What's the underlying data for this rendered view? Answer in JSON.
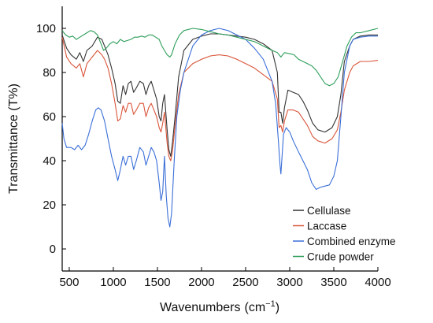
{
  "chart_data": {
    "type": "line",
    "title": "",
    "xlabel": "Wavenumbers",
    "xlabel_unit": "(cm",
    "xlabel_exp": "−1",
    "xlabel_close": ")",
    "ylabel": "Transmittance (T%)",
    "xlim": [
      420,
      4000
    ],
    "ylim": [
      -10,
      110
    ],
    "xticks": [
      500,
      1000,
      1500,
      2000,
      2500,
      3000,
      3500,
      4000
    ],
    "yticks": [
      0,
      20,
      40,
      60,
      80,
      100
    ],
    "legend_position": "bottom-right",
    "grid": false,
    "series": [
      {
        "name": "Cellulase",
        "color": "#333333",
        "points": [
          [
            420,
            97
          ],
          [
            470,
            91
          ],
          [
            520,
            88
          ],
          [
            580,
            86
          ],
          [
            620,
            89
          ],
          [
            660,
            85
          ],
          [
            700,
            90
          ],
          [
            760,
            92
          ],
          [
            820,
            96
          ],
          [
            870,
            95
          ],
          [
            900,
            92
          ],
          [
            940,
            88
          ],
          [
            980,
            82
          ],
          [
            1020,
            75
          ],
          [
            1050,
            67
          ],
          [
            1080,
            66
          ],
          [
            1110,
            74
          ],
          [
            1140,
            70
          ],
          [
            1170,
            75
          ],
          [
            1200,
            76
          ],
          [
            1230,
            71
          ],
          [
            1260,
            73
          ],
          [
            1300,
            76
          ],
          [
            1340,
            75
          ],
          [
            1370,
            70
          ],
          [
            1400,
            74
          ],
          [
            1430,
            76
          ],
          [
            1460,
            72
          ],
          [
            1490,
            68
          ],
          [
            1520,
            60
          ],
          [
            1540,
            58
          ],
          [
            1560,
            66
          ],
          [
            1580,
            70
          ],
          [
            1610,
            54
          ],
          [
            1630,
            45
          ],
          [
            1650,
            42
          ],
          [
            1670,
            48
          ],
          [
            1700,
            60
          ],
          [
            1740,
            78
          ],
          [
            1800,
            90
          ],
          [
            1900,
            95
          ],
          [
            2000,
            96.5
          ],
          [
            2100,
            97.5
          ],
          [
            2200,
            97.5
          ],
          [
            2300,
            97
          ],
          [
            2400,
            96.5
          ],
          [
            2500,
            96
          ],
          [
            2600,
            95
          ],
          [
            2700,
            93
          ],
          [
            2800,
            90
          ],
          [
            2860,
            80
          ],
          [
            2880,
            62
          ],
          [
            2900,
            62
          ],
          [
            2920,
            57
          ],
          [
            2940,
            64
          ],
          [
            2980,
            72
          ],
          [
            3040,
            71
          ],
          [
            3100,
            70
          ],
          [
            3150,
            67
          ],
          [
            3200,
            63
          ],
          [
            3260,
            57
          ],
          [
            3320,
            54
          ],
          [
            3400,
            53
          ],
          [
            3480,
            55
          ],
          [
            3540,
            60
          ],
          [
            3580,
            70
          ],
          [
            3620,
            85
          ],
          [
            3680,
            92
          ],
          [
            3720,
            95
          ],
          [
            3800,
            96.5
          ],
          [
            3900,
            97
          ],
          [
            4000,
            97
          ]
        ]
      },
      {
        "name": "Laccase",
        "color": "#d9553a",
        "points": [
          [
            420,
            96
          ],
          [
            470,
            87
          ],
          [
            520,
            84
          ],
          [
            580,
            82
          ],
          [
            620,
            84
          ],
          [
            660,
            78
          ],
          [
            700,
            84
          ],
          [
            760,
            87
          ],
          [
            820,
            90
          ],
          [
            870,
            88
          ],
          [
            900,
            86
          ],
          [
            940,
            82
          ],
          [
            980,
            75
          ],
          [
            1020,
            66
          ],
          [
            1050,
            58
          ],
          [
            1080,
            59
          ],
          [
            1110,
            65
          ],
          [
            1140,
            62
          ],
          [
            1170,
            66
          ],
          [
            1200,
            66
          ],
          [
            1230,
            61
          ],
          [
            1260,
            63
          ],
          [
            1300,
            66
          ],
          [
            1340,
            66
          ],
          [
            1370,
            60
          ],
          [
            1400,
            64
          ],
          [
            1430,
            66
          ],
          [
            1460,
            63
          ],
          [
            1490,
            60
          ],
          [
            1520,
            55
          ],
          [
            1540,
            53
          ],
          [
            1560,
            57
          ],
          [
            1580,
            62
          ],
          [
            1610,
            48
          ],
          [
            1630,
            42
          ],
          [
            1650,
            40
          ],
          [
            1670,
            44
          ],
          [
            1700,
            56
          ],
          [
            1740,
            70
          ],
          [
            1800,
            80
          ],
          [
            1900,
            84
          ],
          [
            2000,
            86
          ],
          [
            2100,
            87.5
          ],
          [
            2200,
            88
          ],
          [
            2300,
            87.5
          ],
          [
            2400,
            86
          ],
          [
            2500,
            84
          ],
          [
            2600,
            82
          ],
          [
            2700,
            79
          ],
          [
            2800,
            76
          ],
          [
            2860,
            68
          ],
          [
            2880,
            55
          ],
          [
            2900,
            56
          ],
          [
            2920,
            53
          ],
          [
            2940,
            58
          ],
          [
            2980,
            63
          ],
          [
            3040,
            63
          ],
          [
            3100,
            62
          ],
          [
            3150,
            59
          ],
          [
            3200,
            56
          ],
          [
            3260,
            51
          ],
          [
            3320,
            49
          ],
          [
            3400,
            48
          ],
          [
            3480,
            50
          ],
          [
            3540,
            54
          ],
          [
            3580,
            62
          ],
          [
            3620,
            72
          ],
          [
            3680,
            80
          ],
          [
            3720,
            83
          ],
          [
            3800,
            85
          ],
          [
            3900,
            85
          ],
          [
            4000,
            85.5
          ]
        ]
      },
      {
        "name": "Combined enzyme",
        "color": "#3a6fd8",
        "points": [
          [
            420,
            57
          ],
          [
            440,
            50
          ],
          [
            470,
            46
          ],
          [
            520,
            46
          ],
          [
            560,
            45
          ],
          [
            600,
            47
          ],
          [
            640,
            45
          ],
          [
            680,
            47
          ],
          [
            720,
            52
          ],
          [
            760,
            58
          ],
          [
            800,
            63
          ],
          [
            830,
            64
          ],
          [
            860,
            63
          ],
          [
            900,
            58
          ],
          [
            940,
            50
          ],
          [
            980,
            42
          ],
          [
            1020,
            36
          ],
          [
            1050,
            31
          ],
          [
            1080,
            36
          ],
          [
            1110,
            42
          ],
          [
            1140,
            38
          ],
          [
            1170,
            42
          ],
          [
            1200,
            42
          ],
          [
            1230,
            36
          ],
          [
            1260,
            40
          ],
          [
            1300,
            46
          ],
          [
            1340,
            44
          ],
          [
            1370,
            38
          ],
          [
            1400,
            42
          ],
          [
            1430,
            46
          ],
          [
            1460,
            44
          ],
          [
            1490,
            40
          ],
          [
            1520,
            30
          ],
          [
            1540,
            22
          ],
          [
            1560,
            26
          ],
          [
            1580,
            42
          ],
          [
            1600,
            24
          ],
          [
            1620,
            14
          ],
          [
            1640,
            10
          ],
          [
            1660,
            16
          ],
          [
            1690,
            40
          ],
          [
            1720,
            60
          ],
          [
            1760,
            72
          ],
          [
            1800,
            80
          ],
          [
            1900,
            92
          ],
          [
            2000,
            97
          ],
          [
            2100,
            99
          ],
          [
            2200,
            100
          ],
          [
            2300,
            99
          ],
          [
            2400,
            97
          ],
          [
            2500,
            95
          ],
          [
            2600,
            91
          ],
          [
            2700,
            86
          ],
          [
            2800,
            76
          ],
          [
            2840,
            66
          ],
          [
            2870,
            50
          ],
          [
            2890,
            38
          ],
          [
            2900,
            34
          ],
          [
            2910,
            40
          ],
          [
            2930,
            52
          ],
          [
            2960,
            55
          ],
          [
            3000,
            53
          ],
          [
            3040,
            49
          ],
          [
            3100,
            44
          ],
          [
            3150,
            40
          ],
          [
            3200,
            36
          ],
          [
            3250,
            30
          ],
          [
            3300,
            27
          ],
          [
            3350,
            28
          ],
          [
            3400,
            28.5
          ],
          [
            3450,
            29
          ],
          [
            3500,
            33
          ],
          [
            3540,
            40
          ],
          [
            3580,
            60
          ],
          [
            3620,
            80
          ],
          [
            3680,
            92
          ],
          [
            3720,
            95
          ],
          [
            3800,
            96
          ],
          [
            3900,
            96.5
          ],
          [
            4000,
            96.5
          ]
        ]
      },
      {
        "name": "Crude powder",
        "color": "#2e9e5a",
        "points": [
          [
            420,
            99
          ],
          [
            460,
            97
          ],
          [
            500,
            96
          ],
          [
            540,
            96.5
          ],
          [
            580,
            95
          ],
          [
            620,
            96
          ],
          [
            660,
            97
          ],
          [
            700,
            98
          ],
          [
            740,
            99
          ],
          [
            780,
            98.5
          ],
          [
            820,
            97
          ],
          [
            860,
            93
          ],
          [
            890,
            90
          ],
          [
            920,
            91
          ],
          [
            960,
            93
          ],
          [
            1000,
            94
          ],
          [
            1040,
            93
          ],
          [
            1080,
            95
          ],
          [
            1120,
            94
          ],
          [
            1160,
            94.5
          ],
          [
            1200,
            95
          ],
          [
            1240,
            96
          ],
          [
            1280,
            96
          ],
          [
            1320,
            96.5
          ],
          [
            1360,
            96
          ],
          [
            1400,
            97
          ],
          [
            1440,
            97
          ],
          [
            1480,
            96
          ],
          [
            1520,
            95
          ],
          [
            1550,
            92
          ],
          [
            1580,
            90
          ],
          [
            1610,
            88
          ],
          [
            1640,
            87
          ],
          [
            1660,
            88
          ],
          [
            1700,
            93
          ],
          [
            1750,
            97
          ],
          [
            1800,
            99
          ],
          [
            1900,
            100
          ],
          [
            2000,
            99.5
          ],
          [
            2100,
            98.5
          ],
          [
            2200,
            97.5
          ],
          [
            2300,
            97
          ],
          [
            2400,
            96
          ],
          [
            2500,
            95
          ],
          [
            2600,
            94
          ],
          [
            2700,
            92
          ],
          [
            2800,
            90
          ],
          [
            2860,
            89
          ],
          [
            2900,
            87
          ],
          [
            2940,
            89
          ],
          [
            3000,
            88.5
          ],
          [
            3050,
            88
          ],
          [
            3100,
            86
          ],
          [
            3150,
            85
          ],
          [
            3200,
            84
          ],
          [
            3250,
            83
          ],
          [
            3300,
            81
          ],
          [
            3350,
            78
          ],
          [
            3400,
            75
          ],
          [
            3450,
            74
          ],
          [
            3500,
            75
          ],
          [
            3550,
            78
          ],
          [
            3600,
            85
          ],
          [
            3650,
            92
          ],
          [
            3700,
            96
          ],
          [
            3750,
            98
          ],
          [
            3800,
            98
          ],
          [
            3900,
            99
          ],
          [
            4000,
            100
          ]
        ]
      }
    ]
  }
}
